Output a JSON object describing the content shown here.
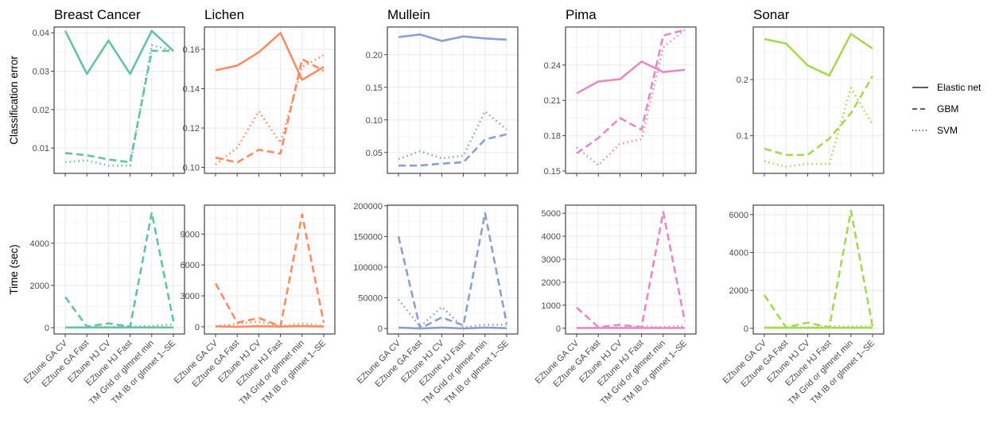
{
  "chart_data": {
    "type": "line",
    "categories": [
      "EZtune GA CV",
      "EZtune GA Fast",
      "EZtune HJ CV",
      "EZtune HJ Fast",
      "TM Grid or glmnet min",
      "TM IB or glmnet 1–SE"
    ],
    "row_labels": [
      "Classification error",
      "Time (sec)"
    ],
    "legend": {
      "position": "right",
      "items": [
        {
          "name": "Elastic net",
          "dash": "solid"
        },
        {
          "name": "GBM",
          "dash": "dashed"
        },
        {
          "name": "SVM",
          "dash": "dotted"
        }
      ]
    },
    "grid": true,
    "panels": [
      {
        "title": "Breast Cancer",
        "color": "#66c2a5",
        "error": {
          "ylim": [
            0.0034,
            0.0415
          ],
          "yticks": [
            0.01,
            0.02,
            0.03,
            0.04
          ],
          "ytick_labels": [
            "0.01",
            "0.02",
            "0.03",
            "0.04"
          ],
          "series": [
            {
              "name": "Elastic net",
              "values": [
                0.0405,
                0.0293,
                0.038,
                0.0293,
                0.0405,
                0.0353
              ]
            },
            {
              "name": "GBM",
              "values": [
                0.0087,
                0.0081,
                0.007,
                0.0063,
                0.0353,
                0.0353
              ]
            },
            {
              "name": "SVM",
              "values": [
                0.0063,
                0.0068,
                0.0054,
                0.0054,
                0.0368,
                0.0353
              ]
            }
          ]
        },
        "time": {
          "ylim": [
            -300,
            5800
          ],
          "yticks": [
            0,
            2000,
            4000
          ],
          "ytick_labels": [
            "0",
            "2000",
            "4000"
          ],
          "series": [
            {
              "name": "Elastic net",
              "values": [
                10,
                10,
                10,
                10,
                10,
                10
              ]
            },
            {
              "name": "GBM",
              "values": [
                1450,
                50,
                200,
                50,
                5450,
                300
              ]
            },
            {
              "name": "SVM",
              "values": [
                10,
                10,
                30,
                50,
                80,
                150
              ]
            }
          ]
        }
      },
      {
        "title": "Lichen",
        "color": "#fc8d62",
        "error": {
          "ylim": [
            0.097,
            0.1713
          ],
          "yticks": [
            0.1,
            0.12,
            0.14,
            0.16
          ],
          "ytick_labels": [
            "0.10",
            "0.12",
            "0.14",
            "0.16"
          ],
          "series": [
            {
              "name": "Elastic net",
              "values": [
                0.1493,
                0.1517,
                0.1585,
                0.1683,
                0.1445,
                0.151
              ]
            },
            {
              "name": "GBM",
              "values": [
                0.105,
                0.1025,
                0.109,
                0.107,
                0.155,
                0.149
              ]
            },
            {
              "name": "SVM",
              "values": [
                0.1015,
                0.11,
                0.1285,
                0.1125,
                0.151,
                0.157
              ]
            }
          ]
        },
        "time": {
          "ylim": [
            -700,
            11800
          ],
          "yticks": [
            0,
            3000,
            6000,
            9000
          ],
          "ytick_labels": [
            "0",
            "3000",
            "6000",
            "9000"
          ],
          "series": [
            {
              "name": "Elastic net",
              "values": [
                40,
                0,
                60,
                20,
                60,
                20
              ]
            },
            {
              "name": "GBM",
              "values": [
                4200,
                400,
                850,
                50,
                10900,
                400
              ]
            },
            {
              "name": "SVM",
              "values": [
                60,
                300,
                500,
                50,
                300,
                100
              ]
            }
          ]
        }
      },
      {
        "title": "Mullein",
        "color": "#8da0cb",
        "error": {
          "ylim": [
            0.018,
            0.2424
          ],
          "yticks": [
            0.05,
            0.1,
            0.15,
            0.2
          ],
          "ytick_labels": [
            "0.05",
            "0.10",
            "0.15",
            "0.20"
          ],
          "series": [
            {
              "name": "Elastic net",
              "values": [
                0.227,
                0.231,
                0.221,
                0.228,
                0.225,
                0.223
              ]
            },
            {
              "name": "GBM",
              "values": [
                0.03,
                0.03,
                0.033,
                0.035,
                0.07,
                0.078
              ]
            },
            {
              "name": "SVM",
              "values": [
                0.04,
                0.052,
                0.041,
                0.045,
                0.113,
                0.085
              ]
            }
          ]
        },
        "time": {
          "ylim": [
            -9000,
            201000
          ],
          "yticks": [
            0,
            50000,
            100000,
            150000,
            200000
          ],
          "ytick_labels": [
            "0",
            "50000",
            "100000",
            "150000",
            "200000"
          ],
          "series": [
            {
              "name": "Elastic net",
              "values": [
                1500,
                0,
                1500,
                0,
                1500,
                500
              ]
            },
            {
              "name": "GBM",
              "values": [
                150000,
                0,
                18000,
                5000,
                188000,
                8000
              ]
            },
            {
              "name": "SVM",
              "values": [
                47000,
                3000,
                35000,
                2000,
                6000,
                6000
              ]
            }
          ]
        }
      },
      {
        "title": "Pima",
        "color": "#e78ac3",
        "error": {
          "ylim": [
            0.148,
            0.2723
          ],
          "yticks": [
            0.15,
            0.18,
            0.21,
            0.24
          ],
          "ytick_labels": [
            "0.15",
            "0.18",
            "0.21",
            "0.24"
          ],
          "series": [
            {
              "name": "Elastic net",
              "values": [
                0.216,
                0.226,
                0.228,
                0.243,
                0.234,
                0.236
              ]
            },
            {
              "name": "GBM",
              "values": [
                0.165,
                0.178,
                0.195,
                0.185,
                0.265,
                0.27
              ]
            },
            {
              "name": "SVM",
              "values": [
                0.17,
                0.155,
                0.173,
                0.177,
                0.255,
                0.27
              ]
            }
          ]
        },
        "time": {
          "ylim": [
            -250,
            5350
          ],
          "yticks": [
            0,
            1000,
            2000,
            3000,
            4000,
            5000
          ],
          "ytick_labels": [
            "0",
            "1000",
            "2000",
            "3000",
            "4000",
            "5000"
          ],
          "series": [
            {
              "name": "Elastic net",
              "values": [
                10,
                10,
                10,
                10,
                10,
                10
              ]
            },
            {
              "name": "GBM",
              "values": [
                900,
                50,
                150,
                50,
                5050,
                300
              ]
            },
            {
              "name": "SVM",
              "values": [
                10,
                30,
                30,
                80,
                60,
                100
              ]
            }
          ]
        }
      },
      {
        "title": "Sonar",
        "color": "#a6d854",
        "error": {
          "ylim": [
            0.0332,
            0.2933
          ],
          "yticks": [
            0.1,
            0.2
          ],
          "ytick_labels": [
            "0.1",
            "0.2"
          ],
          "series": [
            {
              "name": "Elastic net",
              "values": [
                0.272,
                0.264,
                0.225,
                0.207,
                0.281,
                0.255
              ]
            },
            {
              "name": "GBM",
              "values": [
                0.077,
                0.066,
                0.066,
                0.095,
                0.14,
                0.206
              ]
            },
            {
              "name": "SVM",
              "values": [
                0.055,
                0.045,
                0.05,
                0.05,
                0.185,
                0.12
              ]
            }
          ]
        },
        "time": {
          "ylim": [
            -300,
            6500
          ],
          "yticks": [
            0,
            2000,
            4000,
            6000
          ],
          "ytick_labels": [
            "0",
            "2000",
            "4000",
            "6000"
          ],
          "series": [
            {
              "name": "Elastic net",
              "values": [
                30,
                30,
                30,
                30,
                30,
                30
              ]
            },
            {
              "name": "GBM",
              "values": [
                1750,
                50,
                300,
                50,
                6200,
                100
              ]
            },
            {
              "name": "SVM",
              "values": [
                50,
                50,
                50,
                100,
                100,
                100
              ]
            }
          ]
        }
      }
    ]
  }
}
